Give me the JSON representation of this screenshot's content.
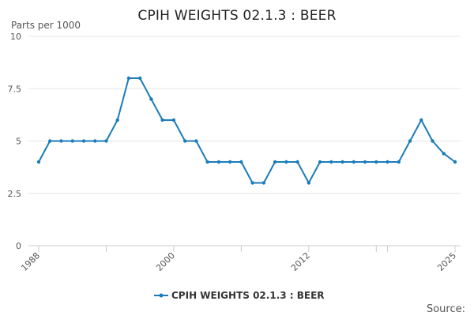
{
  "chart_data": {
    "type": "line",
    "title": "CPIH WEIGHTS 02.1.3 : BEER",
    "ylabel": "Parts per 1000",
    "xlabel": "",
    "ylim": [
      0,
      10
    ],
    "yticks": [
      0,
      2.5,
      5,
      7.5,
      10
    ],
    "ytick_labels": [
      "0",
      "2.5",
      "5",
      "7.5",
      "10"
    ],
    "xlim": [
      1988,
      2025
    ],
    "xtick_labels": [
      "1988",
      "2000",
      "2012",
      "2025"
    ],
    "grid": "horizontal",
    "legend_position": "bottom",
    "color": "#1a7cba",
    "series": [
      {
        "name": "CPIH WEIGHTS 02.1.3 : BEER",
        "x": [
          1988,
          1989,
          1990,
          1991,
          1992,
          1993,
          1994,
          1995,
          1996,
          1997,
          1998,
          1999,
          2000,
          2001,
          2002,
          2003,
          2004,
          2005,
          2006,
          2007,
          2008,
          2009,
          2010,
          2011,
          2012,
          2013,
          2014,
          2015,
          2016,
          2017,
          2018,
          2019,
          2020,
          2021,
          2022,
          2023,
          2024,
          2025
        ],
        "values": [
          4,
          5,
          5,
          5,
          5,
          5,
          5,
          6,
          8,
          8,
          7,
          6,
          6,
          5,
          5,
          4,
          4,
          4,
          4,
          3,
          3,
          4,
          4,
          4,
          3,
          4,
          4,
          4,
          4,
          4,
          4,
          4,
          4,
          5,
          6,
          5,
          4.4,
          4
        ]
      }
    ]
  },
  "footer": {
    "source_label": "Source:"
  }
}
